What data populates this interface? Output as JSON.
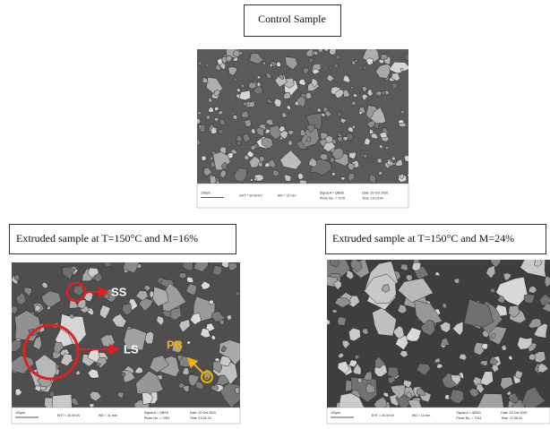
{
  "panels": [
    {
      "caption": "Control Sample",
      "scale_bar": "100µm",
      "info": [
        "EHT = 20.00 kV",
        "WD = 11 mm",
        "Signal A = QBSD",
        "Photo No. = 7276",
        "Date :20 Oct 2020",
        "Time :10:14:04"
      ]
    },
    {
      "caption": "Extruded sample at T=150°C and M=16%",
      "scale_bar": "100µm",
      "info": [
        "EHT = 20.00 kV",
        "WD = 11 mm",
        "Signal A = QBSD",
        "Photo No. = 7263",
        "Date :20 Oct 2020",
        "Time :10:01:33"
      ]
    },
    {
      "caption": "Extruded sample at T=150°C and M=24%",
      "scale_bar": "100µm",
      "info": [
        "EHT = 20.00 kV",
        "WD = 11 mm",
        "Signal A = QBSD",
        "Photo No. = 7241",
        "Date :20 Oct 2020",
        "Time :17:36:34"
      ]
    }
  ],
  "annotations": [
    "SS",
    "LS",
    "PB",
    "O"
  ]
}
